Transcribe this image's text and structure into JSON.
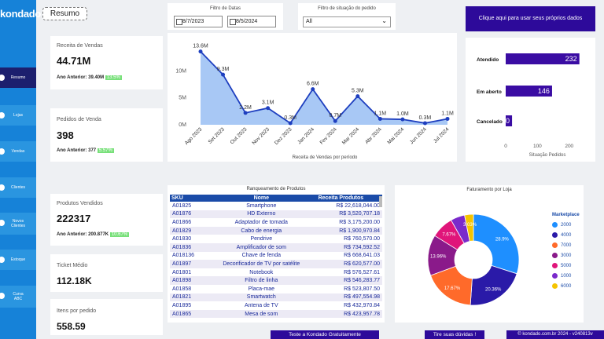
{
  "brand": {
    "logo": "kondado"
  },
  "sidebar": {
    "items": [
      {
        "label": "Resumo",
        "active": true
      },
      {
        "label": "Lojas"
      },
      {
        "label": "Vendas"
      },
      {
        "label": "Clientes"
      },
      {
        "label": "Novos Clientes"
      },
      {
        "label": "Estoque"
      },
      {
        "label": "Curva ABC"
      }
    ]
  },
  "header": {
    "resumo_label": "Resumo"
  },
  "filters": {
    "date_label": "Filtro de Datas",
    "date_start": "8/7/2023",
    "date_end": "8/5/2024",
    "status_label": "Filtro de situação do pedido",
    "status_value": "All"
  },
  "cta_top": "Clique aqui para usar seus próprios dados",
  "kpis": {
    "revenue": {
      "title": "Receita de Vendas",
      "value": "44.71M",
      "prev_label": "Ano Anterior: 39.40M",
      "badge": "13.5%"
    },
    "orders": {
      "title": "Pedidos de Venda",
      "value": "398",
      "prev_label": "Ano Anterior: 377",
      "badge": "5.57%"
    },
    "products": {
      "title": "Produtos Vendidos",
      "value": "222317",
      "prev_label": "Ano Anterior: 200.877K",
      "badge": "10.67%"
    },
    "ticket": {
      "title": "Ticket Médio",
      "value": "112.18K"
    },
    "items_per_order": {
      "title": "Itens por pedido",
      "value": "558.59"
    }
  },
  "line_chart": {
    "xlabel": "Receita de Vendas por período",
    "chart_data": {
      "type": "area",
      "categories": [
        "Ago 2023",
        "Set 2023",
        "Out 2023",
        "Nov 2023",
        "Dez 2023",
        "Jan 2024",
        "Fev 2024",
        "Mar 2024",
        "Abr 2024",
        "Mai 2024",
        "Jun 2024",
        "Jul 2024"
      ],
      "values": [
        13.6,
        9.3,
        2.2,
        3.1,
        0.3,
        6.6,
        0.7,
        5.3,
        1.1,
        1.0,
        0.3,
        1.1
      ],
      "value_labels": [
        "13.6M",
        "9.3M",
        "2.2M",
        "3.1M",
        "0.3M",
        "6.6M",
        "0.7M",
        "5.3M",
        "1.1M",
        "1.0M",
        "0.3M",
        "1.1M"
      ],
      "yticks": [
        "0M",
        "5M",
        "10M"
      ],
      "ylim": [
        0,
        15
      ],
      "color": "#1e3fbf",
      "fill": "#a8c8f5"
    }
  },
  "status_chart": {
    "xlabel": "Situação Pedidos",
    "chart_data": {
      "type": "bar",
      "categories": [
        "Atendido",
        "Em aberto",
        "Cancelado"
      ],
      "values": [
        232,
        146,
        20
      ],
      "xticks": [
        "0",
        "100",
        "200"
      ],
      "xlim": [
        0,
        260
      ],
      "color": "#3a0ca3"
    }
  },
  "sku_table": {
    "title": "Ranqueamento de Produtos",
    "headers": [
      "SKU",
      "Nome",
      "Receita Produtos"
    ],
    "rows": [
      [
        "A01825",
        "Smartphone",
        "R$ 22,618,044.00"
      ],
      [
        "A01876",
        "HD Externo",
        "R$ 3,520,707.18"
      ],
      [
        "A01866",
        "Adaptador de tomada",
        "R$ 3,175,200.00"
      ],
      [
        "A01829",
        "Cabo de energia",
        "R$ 1,900,970.84"
      ],
      [
        "A01830",
        "Pendrive",
        "R$ 760,570.00"
      ],
      [
        "A01836",
        "Amplificador de som",
        "R$ 734,592.52"
      ],
      [
        "A018136",
        "Chave de fenda",
        "R$ 668,641.03"
      ],
      [
        "A01897",
        "Decorificador de TV por satélite",
        "R$ 620,577.00"
      ],
      [
        "A01801",
        "Notebook",
        "R$ 576,527.61"
      ],
      [
        "A01898",
        "Filtro de linha",
        "R$ 546,283.77"
      ],
      [
        "A01858",
        "Placa-mae",
        "R$ 523,807.50"
      ],
      [
        "A01821",
        "Smartwatch",
        "R$ 497,554.98"
      ],
      [
        "A01895",
        "Antena de TV",
        "R$ 432,970.84"
      ],
      [
        "A01865",
        "Mesa de som",
        "R$ 423,957.78"
      ]
    ]
  },
  "donut_chart": {
    "title": "Faturamento por Loja",
    "legend_title": "Marketplace",
    "chart_data": {
      "type": "pie",
      "categories": [
        "2000",
        "4000",
        "7000",
        "3000",
        "5000",
        "1000",
        "6000"
      ],
      "values": [
        28.9,
        20.36,
        17.67,
        13.96,
        7.67,
        4.85,
        3.03
      ],
      "labels": [
        "28.9%",
        "20.36%",
        "17.67%",
        "13.96%",
        "7.67%",
        "",
        "3.03%"
      ],
      "colors": [
        "#1e8fff",
        "#2a1aa8",
        "#ff6a2a",
        "#8a1a8a",
        "#e0157a",
        "#7a2acb",
        "#f5c400"
      ]
    }
  },
  "footer": {
    "btn1": "Teste a Kondado Gratuitamente",
    "btn2": "Tire suas dúvidas !",
    "btn3": "© kondado.com.br 2024 - v240813v"
  }
}
